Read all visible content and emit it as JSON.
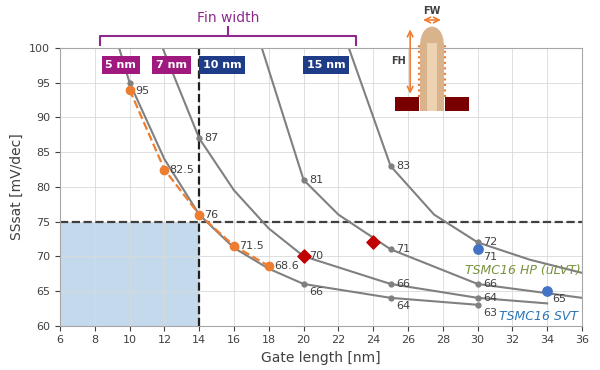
{
  "chart_data": {
    "type": "line",
    "xlabel": "Gate length [nm]",
    "ylabel": "SSsat [mV/dec]",
    "xlim": [
      6,
      36
    ],
    "ylim": [
      60,
      100
    ],
    "xticks": [
      6,
      8,
      10,
      12,
      14,
      16,
      18,
      20,
      22,
      24,
      26,
      28,
      30,
      32,
      34,
      36
    ],
    "yticks": [
      60,
      65,
      70,
      75,
      80,
      85,
      90,
      95,
      100
    ],
    "grid": true,
    "group_label": "Fin width",
    "target": {
      "x": 14,
      "y": 75
    },
    "inset_labels": [
      "FW",
      "FH"
    ],
    "series": [
      {
        "name": "5 nm",
        "color": "#808080",
        "line_style": "solid",
        "x": [
          9.4,
          10,
          12,
          14,
          16,
          18,
          20,
          25,
          30
        ],
        "values": [
          100,
          95,
          84,
          76,
          71.2,
          68.2,
          66,
          64,
          63
        ],
        "value_labels": [
          null,
          "95",
          null,
          null,
          null,
          null,
          "66",
          "64",
          "63"
        ]
      },
      {
        "name": "7 nm",
        "color": "#808080",
        "line_style": "solid",
        "x": [
          11.9,
          14,
          16,
          18,
          20,
          25,
          30,
          34
        ],
        "values": [
          100,
          87,
          79.5,
          74,
          70,
          66,
          64,
          63.2
        ],
        "value_labels": [
          null,
          "87",
          null,
          null,
          null,
          "66",
          "64",
          null
        ]
      },
      {
        "name": "10 nm",
        "color": "#808080",
        "line_style": "solid",
        "x": [
          17.6,
          20,
          22,
          25,
          30,
          36
        ],
        "values": [
          100,
          81,
          76,
          71,
          66,
          64
        ],
        "value_labels": [
          null,
          "81",
          null,
          "71",
          "66",
          null
        ]
      },
      {
        "name": "15 nm",
        "color": "#808080",
        "line_style": "solid",
        "x": [
          22.6,
          25,
          27.5,
          30,
          33,
          36
        ],
        "values": [
          100,
          83,
          76,
          72,
          69.5,
          67.6
        ],
        "value_labels": [
          null,
          "83",
          null,
          "72",
          null,
          null
        ]
      },
      {
        "type": "line",
        "color": "#ed7d31",
        "line_style": "dashed",
        "marker": "o",
        "x": [
          10,
          12,
          14,
          16,
          18
        ],
        "values": [
          94,
          82.5,
          76,
          71.5,
          68.6
        ],
        "value_labels": [
          null,
          "82.5",
          "76",
          "71.5",
          "68.6"
        ]
      },
      {
        "type": "scatter",
        "color": "#c00000",
        "marker": "diamond",
        "x": [
          20,
          24
        ],
        "values": [
          70,
          72
        ],
        "value_labels": [
          "70",
          null
        ]
      },
      {
        "type": "scatter",
        "color": "#4472c4",
        "marker": "o",
        "x": [
          30,
          34
        ],
        "values": [
          71,
          65
        ],
        "value_labels": [
          "71",
          "65"
        ]
      }
    ],
    "annotations": [
      {
        "text": "TSMC16 HP (uLVT)",
        "color": "#77933c"
      },
      {
        "text": "TSMC16 SVT",
        "color": "#2e75b6"
      }
    ]
  }
}
